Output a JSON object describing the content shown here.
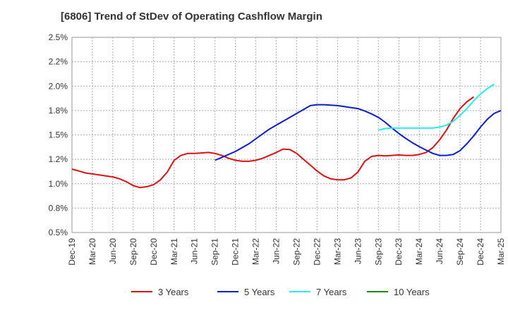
{
  "chart_data": {
    "type": "line",
    "title": "[6806]  Trend of StDev of Operating Cashflow Margin",
    "xlabel": "",
    "ylabel": "",
    "x_ticks": [
      "Dec-19",
      "Mar-20",
      "Jun-20",
      "Sep-20",
      "Dec-20",
      "Mar-21",
      "Jun-21",
      "Sep-21",
      "Dec-21",
      "Mar-22",
      "Jun-22",
      "Sep-22",
      "Dec-22",
      "Mar-23",
      "Jun-23",
      "Sep-23",
      "Dec-23",
      "Mar-24",
      "Jun-24",
      "Sep-24",
      "Dec-24",
      "Mar-25"
    ],
    "y_ticks": [
      "0.5%",
      "0.8%",
      "1.0%",
      "1.2%",
      "1.5%",
      "1.8%",
      "2.0%",
      "2.2%",
      "2.5%"
    ],
    "ylim": [
      0.5,
      2.5
    ],
    "grid": true,
    "legend_position": "bottom",
    "series": [
      {
        "name": "3 Years",
        "color": "#dd1111",
        "start": "Dec-19",
        "values": [
          1.15,
          1.13,
          1.11,
          1.1,
          1.09,
          1.08,
          1.07,
          1.05,
          1.02,
          0.98,
          0.96,
          0.97,
          0.99,
          1.04,
          1.12,
          1.24,
          1.29,
          1.31,
          1.31,
          1.315,
          1.32,
          1.31,
          1.29,
          1.26,
          1.24,
          1.23,
          1.23,
          1.24,
          1.26,
          1.29,
          1.32,
          1.355,
          1.35,
          1.31,
          1.25,
          1.19,
          1.13,
          1.08,
          1.05,
          1.04,
          1.04,
          1.06,
          1.12,
          1.23,
          1.28,
          1.29,
          1.285,
          1.29,
          1.295,
          1.29,
          1.29,
          1.3,
          1.32,
          1.37,
          1.45,
          1.55,
          1.67,
          1.77,
          1.84,
          1.89
        ]
      },
      {
        "name": "5 Years",
        "color": "#0a1ecc",
        "start": "Sep-21",
        "values": [
          1.24,
          1.27,
          1.3,
          1.33,
          1.37,
          1.41,
          1.46,
          1.51,
          1.56,
          1.6,
          1.64,
          1.68,
          1.72,
          1.76,
          1.8,
          1.81,
          1.81,
          1.805,
          1.8,
          1.79,
          1.78,
          1.77,
          1.745,
          1.715,
          1.68,
          1.63,
          1.57,
          1.515,
          1.465,
          1.42,
          1.38,
          1.345,
          1.31,
          1.29,
          1.29,
          1.3,
          1.34,
          1.41,
          1.49,
          1.58,
          1.66,
          1.72,
          1.75
        ]
      },
      {
        "name": "7 Years",
        "color": "#22eeee",
        "start": "Sep-23",
        "values": [
          1.55,
          1.565,
          1.57,
          1.57,
          1.57,
          1.57,
          1.57,
          1.57,
          1.57,
          1.58,
          1.6,
          1.64,
          1.7,
          1.77,
          1.85,
          1.92,
          1.975,
          2.02
        ]
      },
      {
        "name": "10 Years",
        "color": "#1a8c1a",
        "start": "Dec-24",
        "values": []
      }
    ]
  }
}
